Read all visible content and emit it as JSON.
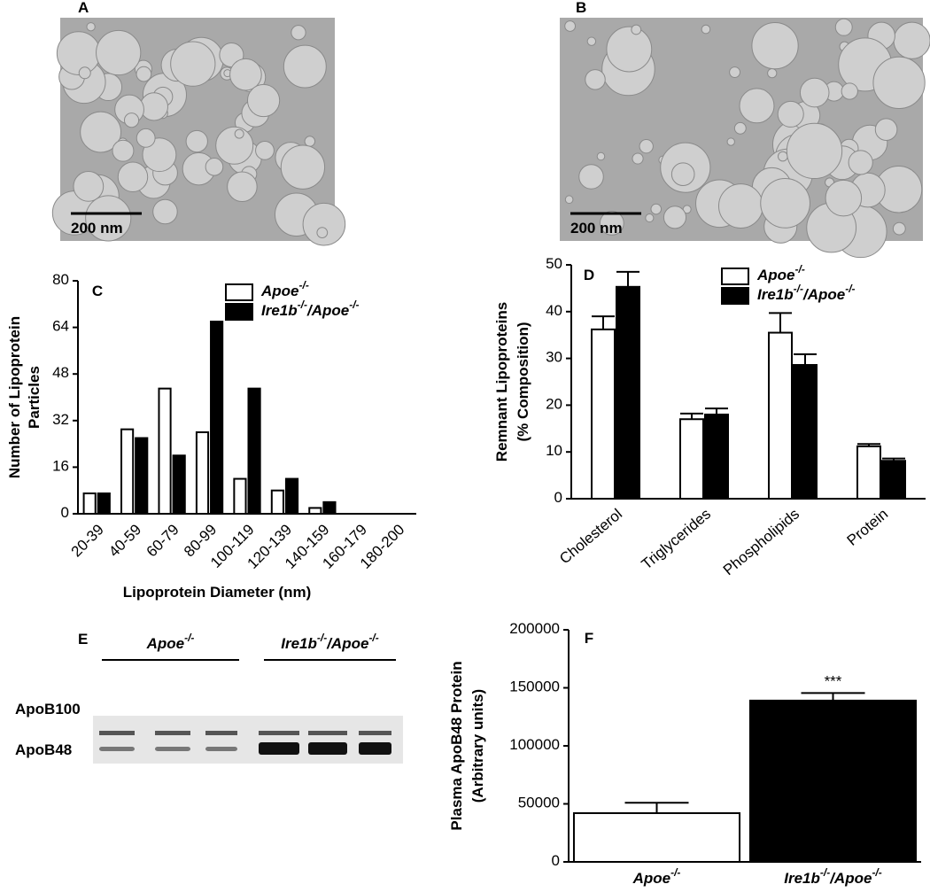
{
  "image_panels": [
    {
      "label": "A",
      "scale_bar": "200 nm"
    },
    {
      "label": "B",
      "scale_bar": "200 nm"
    }
  ],
  "blot": {
    "label": "E",
    "groups": [
      "Apoe-/-",
      "Ire1b-/-/Apoe-/-"
    ],
    "bands": [
      "ApoB100",
      "ApoB48"
    ]
  },
  "chart_data": [
    {
      "type": "bar",
      "label": "C",
      "categories": [
        "20-39",
        "40-59",
        "60-79",
        "80-99",
        "100-119",
        "120-139",
        "140-159",
        "160-179",
        "180-200"
      ],
      "series": [
        {
          "name": "Apoe-/-",
          "color": "#ffffff",
          "values": [
            7,
            29,
            43,
            28,
            12,
            8,
            2,
            0,
            0
          ]
        },
        {
          "name": "Ire1b-/-/Apoe-/-",
          "color": "#000000",
          "values": [
            7,
            26,
            20,
            66,
            43,
            12,
            4,
            0,
            0
          ]
        }
      ],
      "ylim": [
        0,
        80
      ],
      "yticks": [
        0,
        16,
        32,
        48,
        64,
        80
      ],
      "ylabel": [
        "Number of Lipoprotein",
        "Particles"
      ],
      "xlabel": "Lipoprotein Diameter (nm)",
      "legend": "upper right"
    },
    {
      "type": "bar",
      "label": "D",
      "categories": [
        "Cholesterol",
        "Triglycerides",
        "Phospholipids",
        "Protein"
      ],
      "series": [
        {
          "name": "Apoe-/-",
          "color": "#ffffff",
          "values": [
            36.2,
            17,
            35.5,
            11.2
          ],
          "errors": [
            2.8,
            1.2,
            4.2,
            0.5
          ]
        },
        {
          "name": "Ire1b-/-/Apoe-/-",
          "color": "#000000",
          "values": [
            45.3,
            18,
            28.6,
            8.1
          ],
          "errors": [
            3.2,
            1.3,
            2.3,
            0.5
          ]
        }
      ],
      "ylim": [
        0,
        50
      ],
      "yticks": [
        0,
        10,
        20,
        30,
        40,
        50
      ],
      "ylabel": [
        "Remnant Lipoproteins",
        "(% Composition)"
      ],
      "legend": "upper right"
    },
    {
      "type": "bar",
      "label": "F",
      "categories": [
        "Apoe-/-",
        "Ire1b-/-/Apoe-/-"
      ],
      "colors": [
        "#ffffff",
        "#000000"
      ],
      "values": [
        42000,
        139000
      ],
      "errors": [
        9000,
        6500
      ],
      "annotations": [
        null,
        "***"
      ],
      "ylim": [
        0,
        200000
      ],
      "yticks": [
        0,
        50000,
        100000,
        150000,
        200000
      ],
      "ylabel": [
        "Plasma ApoB48 Protein",
        "(Arbitrary units)"
      ]
    }
  ]
}
